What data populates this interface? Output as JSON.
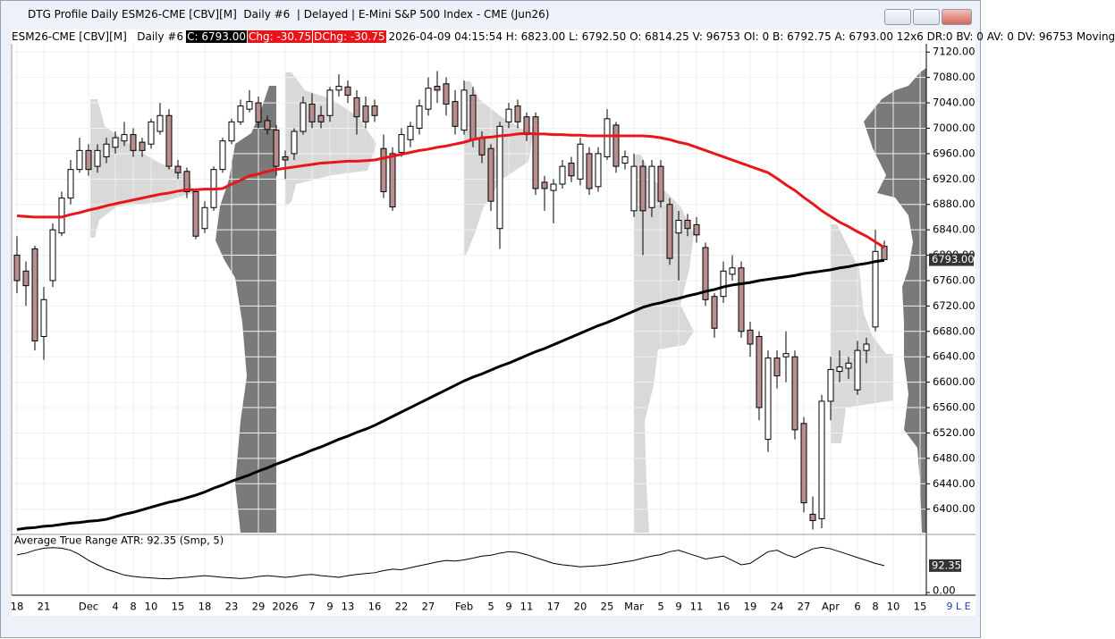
{
  "window": {
    "title": "DTG Profile Daily ESM26-CME [CBV][M]  Daily #6  | Delayed | E-Mini S&P 500 Index - CME (Jun26)",
    "status": "9 L E"
  },
  "header": {
    "symbol": "ESM26-CME [CBV][M]   Daily #6",
    "last": "C: 6793.00",
    "change": "Chg: -30.75",
    "dchange": "DChg: -30.75",
    "details": "2026-04-09 04:15:54 H: 6823.00 L: 6792.50 O: 6814.25 V: 96753 OI: 0 B: 6792.75 A: 6793.00 12x6 DR:0 BV: 0 AV: 0 DV: 96753 Moving"
  },
  "chart_data": {
    "type": "candlestick",
    "categories": [
      "18",
      null,
      null,
      "21",
      null,
      null,
      null,
      null,
      "Dec",
      null,
      null,
      "4",
      null,
      "8",
      null,
      "10",
      null,
      null,
      "15",
      null,
      null,
      "18",
      null,
      null,
      "23",
      null,
      null,
      "29",
      null,
      null,
      "2026",
      null,
      null,
      "7",
      null,
      "9",
      null,
      "13",
      null,
      null,
      "16",
      null,
      null,
      "22",
      null,
      null,
      "27",
      null,
      null,
      null,
      "Feb",
      null,
      null,
      "5",
      null,
      "9",
      null,
      "11",
      null,
      null,
      "17",
      null,
      null,
      "20",
      null,
      null,
      "25",
      null,
      null,
      "Mar",
      null,
      null,
      "5",
      null,
      "9",
      null,
      "11",
      null,
      null,
      "16",
      null,
      null,
      "19",
      null,
      null,
      "24",
      null,
      null,
      "27",
      null,
      null,
      "Apr",
      null,
      null,
      "6",
      null,
      "8",
      null,
      "10",
      null,
      null,
      "15"
    ],
    "open": [
      6800,
      6775,
      6810,
      6672,
      6760,
      6835,
      6890,
      6935,
      6965,
      6940,
      6955,
      6970,
      6980,
      6990,
      6978,
      6975,
      6995,
      7020,
      6940,
      6932,
      6900,
      6842,
      6875,
      6935,
      6980,
      7010,
      7030,
      7040,
      7012,
      6997,
      6955,
      6960,
      6995,
      7038,
      7020,
      7020,
      7060,
      7065,
      7048,
      7035,
      7035,
      6968,
      6960,
      6962,
      6982,
      7000,
      7030,
      7066,
      7070,
      7042,
      6997,
      7052,
      6985,
      6968,
      6842,
      7010,
      7035,
      7018,
      7018,
      6915,
      6902,
      6912,
      6945,
      6920,
      6960,
      6908,
      6955,
      7005,
      6945,
      6870,
      6940,
      6875,
      6940,
      6880,
      6835,
      6855,
      6848,
      6812,
      6735,
      6735,
      6770,
      6780,
      6682,
      6672,
      6510,
      6638,
      6640,
      6640,
      6535,
      6392,
      6385,
      6570,
      6617,
      6622,
      6588,
      6650,
      6687,
      6814.25,
      null,
      null,
      null,
      null
    ],
    "high": [
      6830,
      6790,
      6815,
      6750,
      6850,
      6900,
      6950,
      6985,
      6975,
      6975,
      6985,
      6995,
      7010,
      7000,
      6985,
      7015,
      7040,
      7030,
      6950,
      6938,
      6905,
      6885,
      6940,
      6985,
      7015,
      7045,
      7060,
      7050,
      7020,
      7005,
      6965,
      7000,
      7050,
      7055,
      7035,
      7065,
      7085,
      7075,
      7060,
      7050,
      7045,
      6990,
      6970,
      7000,
      7010,
      7045,
      7080,
      7090,
      7080,
      7060,
      7075,
      7065,
      6995,
      6975,
      7010,
      7040,
      7045,
      7025,
      7025,
      6925,
      6920,
      6950,
      6955,
      6985,
      6970,
      6970,
      7030,
      7010,
      6965,
      6960,
      6950,
      6950,
      6950,
      6890,
      6870,
      6865,
      6860,
      6820,
      6740,
      6790,
      6800,
      6790,
      6695,
      6680,
      6650,
      6650,
      6680,
      6650,
      6545,
      6420,
      6580,
      6640,
      6650,
      6640,
      6665,
      6670,
      6840,
      6823,
      null,
      null,
      null,
      null
    ],
    "low": [
      6740,
      6720,
      6650,
      6635,
      6750,
      6830,
      6880,
      6930,
      6925,
      6930,
      6945,
      6960,
      6972,
      6955,
      6955,
      6968,
      6990,
      6935,
      6920,
      6890,
      6825,
      6835,
      6870,
      6930,
      6975,
      7005,
      7025,
      7000,
      6990,
      6925,
      6920,
      6950,
      6990,
      7000,
      7000,
      7010,
      7050,
      7040,
      6990,
      7000,
      7010,
      6890,
      6870,
      6955,
      6970,
      6990,
      7020,
      7040,
      7020,
      6990,
      6990,
      6970,
      6945,
      6870,
      6810,
      7000,
      7000,
      6980,
      6895,
      6870,
      6850,
      6905,
      6915,
      6910,
      6895,
      6900,
      6950,
      6930,
      6935,
      6860,
      6800,
      6860,
      6875,
      6785,
      6760,
      6830,
      6820,
      6720,
      6670,
      6725,
      6760,
      6670,
      6640,
      6540,
      6490,
      6590,
      6600,
      6510,
      6395,
      6368,
      6370,
      6540,
      6600,
      6605,
      6580,
      6630,
      6680,
      6792.5,
      null,
      null,
      null,
      null
    ],
    "close": [
      6760,
      6752,
      6665,
      6730,
      6840,
      6890,
      6935,
      6965,
      6935,
      6965,
      6975,
      6985,
      6990,
      6965,
      6965,
      7010,
      7020,
      6940,
      6930,
      6900,
      6830,
      6875,
      6935,
      6980,
      7010,
      7035,
      7042,
      7010,
      6998,
      6940,
      6950,
      6995,
      7040,
      7010,
      7010,
      7060,
      7066,
      7052,
      7018,
      7010,
      7020,
      6900,
      6876,
      6990,
      7003,
      7035,
      7063,
      7060,
      7038,
      7003,
      7060,
      6983,
      6958,
      6885,
      7003,
      7030,
      7010,
      6990,
      6905,
      6905,
      6912,
      6940,
      6925,
      6975,
      6905,
      6960,
      7015,
      6940,
      6955,
      6940,
      6870,
      6940,
      6885,
      6795,
      6855,
      6842,
      6832,
      6730,
      6685,
      6775,
      6780,
      6680,
      6660,
      6560,
      6638,
      6610,
      6645,
      6525,
      6410,
      6382,
      6570,
      6620,
      6624,
      6630,
      6650,
      6660,
      6806,
      6793,
      null,
      null,
      null,
      null
    ],
    "up_color": "#ffffff",
    "down_color": "#b98e8e",
    "series": [
      {
        "color": "#e8161b",
        "values": [
          6862,
          6861,
          6860,
          6860,
          6860,
          6860,
          6864,
          6867,
          6871,
          6874,
          6878,
          6881,
          6884,
          6887,
          6890,
          6893,
          6896,
          6898,
          6901,
          6903,
          6903,
          6904,
          6904,
          6905,
          6912,
          6918,
          6925,
          6928,
          6932,
          6935,
          6937,
          6939,
          6941,
          6943,
          6945,
          6946,
          6947,
          6948,
          6948,
          6949,
          6950,
          6953,
          6956,
          6959,
          6962,
          6965,
          6967,
          6970,
          6972,
          6975,
          6978,
          6982,
          6985,
          6986,
          6988,
          6989,
          6991,
          6992,
          6991,
          6991,
          6990,
          6990,
          6989,
          6989,
          6988,
          6988,
          6988,
          6988,
          6988,
          6988,
          6988,
          6987,
          6985,
          6982,
          6978,
          6975,
          6970,
          6965,
          6960,
          6955,
          6950,
          6945,
          6940,
          6935,
          6930,
          6921,
          6911,
          6902,
          6891,
          6881,
          6870,
          6861,
          6852,
          6845,
          6837,
          6830,
          6821,
          6812,
          null,
          null,
          null,
          null
        ]
      },
      {
        "color": "#000000",
        "values": [
          6368,
          6370,
          6371,
          6373,
          6374,
          6376,
          6378,
          6379,
          6381,
          6382,
          6384,
          6388,
          6392,
          6395,
          6399,
          6403,
          6407,
          6411,
          6414,
          6418,
          6422,
          6427,
          6433,
          6438,
          6444,
          6449,
          6454,
          6460,
          6465,
          6471,
          6476,
          6482,
          6487,
          6493,
          6498,
          6504,
          6510,
          6515,
          6521,
          6526,
          6532,
          6539,
          6546,
          6553,
          6560,
          6567,
          6574,
          6581,
          6588,
          6595,
          6602,
          6608,
          6613,
          6619,
          6625,
          6630,
          6636,
          6642,
          6648,
          6653,
          6659,
          6665,
          6671,
          6677,
          6683,
          6689,
          6694,
          6700,
          6706,
          6712,
          6718,
          6722,
          6725,
          6729,
          6732,
          6736,
          6739,
          6743,
          6746,
          6750,
          6753,
          6755,
          6757,
          6760,
          6762,
          6764,
          6766,
          6768,
          6771,
          6773,
          6775,
          6777,
          6780,
          6782,
          6785,
          6787,
          6790,
          6792,
          null,
          null,
          null,
          null
        ]
      }
    ],
    "ylim": [
      6363,
      7133
    ],
    "yticks": [
      {
        "value": 6400,
        "label": "6400.00"
      },
      {
        "value": 6440,
        "label": "6440.00"
      },
      {
        "value": 6480,
        "label": "6480.00"
      },
      {
        "value": 6520,
        "label": "6520.00"
      },
      {
        "value": 6560,
        "label": "6560.00"
      },
      {
        "value": 6600,
        "label": "6600.00"
      },
      {
        "value": 6640,
        "label": "6640.00"
      },
      {
        "value": 6680,
        "label": "6680.00"
      },
      {
        "value": 6720,
        "label": "6720.00"
      },
      {
        "value": 6760,
        "label": "6760.00"
      },
      {
        "value": 6800,
        "label": "6800.00"
      },
      {
        "value": 6840,
        "label": "6840.00"
      },
      {
        "value": 6880,
        "label": "6880.00"
      },
      {
        "value": 6920,
        "label": "6920.00"
      },
      {
        "value": 6960,
        "label": "6960.00"
      },
      {
        "value": 7000,
        "label": "7000.00"
      },
      {
        "value": 7040,
        "label": "7040.00"
      },
      {
        "value": 7080,
        "label": "7080.00"
      },
      {
        "value": 7120,
        "label": "7120.00"
      }
    ],
    "price_marker": {
      "value": 6793,
      "label": "6793.00"
    },
    "grid": true,
    "indicator": {
      "title": "Average True Range  ATR: 92.35  (Smp, 5)",
      "color": "#000000",
      "values": [
        129,
        135,
        145,
        152,
        154,
        152,
        145,
        130,
        110,
        95,
        80,
        70,
        60,
        55,
        52,
        50,
        48,
        47,
        50,
        52,
        55,
        58,
        55,
        52,
        50,
        48,
        50,
        55,
        58,
        55,
        52,
        55,
        60,
        62,
        58,
        55,
        52,
        58,
        62,
        65,
        68,
        75,
        80,
        78,
        85,
        92,
        98,
        105,
        110,
        108,
        112,
        118,
        125,
        128,
        135,
        140,
        138,
        130,
        120,
        110,
        100,
        95,
        92,
        88,
        90,
        92,
        95,
        100,
        105,
        110,
        118,
        125,
        130,
        140,
        145,
        135,
        125,
        115,
        120,
        125,
        110,
        95,
        100,
        120,
        140,
        145,
        130,
        120,
        135,
        150,
        155,
        150,
        140,
        130,
        120,
        110,
        100,
        92.35,
        null,
        null,
        null,
        null
      ],
      "ylim": [
        0,
        190
      ],
      "yticks": [
        {
          "value": 0,
          "label": "0.00"
        }
      ]
    }
  }
}
